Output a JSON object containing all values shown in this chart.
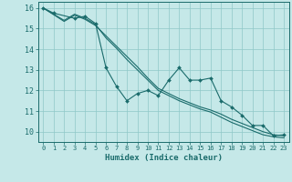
{
  "title": "",
  "xlabel": "Humidex (Indice chaleur)",
  "ylabel": "",
  "background_color": "#c5e8e8",
  "grid_color": "#8fc8c8",
  "line_color": "#1a6b6b",
  "xlim": [
    -0.5,
    23.5
  ],
  "ylim": [
    9.5,
    16.3
  ],
  "yticks": [
    10,
    11,
    12,
    13,
    14,
    15,
    16
  ],
  "xticks": [
    0,
    1,
    2,
    3,
    4,
    5,
    6,
    7,
    8,
    9,
    10,
    11,
    12,
    13,
    14,
    15,
    16,
    17,
    18,
    19,
    20,
    21,
    22,
    23
  ],
  "line1_x": [
    0,
    1,
    3,
    4,
    5,
    6,
    7,
    8,
    9,
    10,
    11,
    12,
    13,
    14,
    15,
    16,
    17,
    18,
    19,
    20,
    21,
    22,
    23
  ],
  "line1_y": [
    16.0,
    15.75,
    15.5,
    15.6,
    15.25,
    13.1,
    12.2,
    11.5,
    11.85,
    12.0,
    11.75,
    12.5,
    13.1,
    12.5,
    12.5,
    12.6,
    11.5,
    11.2,
    10.8,
    10.3,
    10.3,
    9.8,
    9.85
  ],
  "line2_x": [
    0,
    2,
    3,
    4,
    5,
    6,
    7,
    8,
    9,
    10,
    11,
    12,
    13,
    14,
    15,
    16,
    17,
    18,
    19,
    20,
    21,
    22,
    23
  ],
  "line2_y": [
    16.0,
    15.4,
    15.7,
    15.5,
    15.2,
    14.55,
    14.05,
    13.5,
    13.0,
    12.5,
    12.0,
    11.75,
    11.5,
    11.3,
    11.1,
    10.95,
    10.7,
    10.45,
    10.25,
    10.05,
    9.85,
    9.75,
    9.7
  ],
  "line3_x": [
    0,
    2,
    3,
    4,
    5,
    6,
    7,
    8,
    9,
    10,
    11,
    12,
    13,
    14,
    15,
    16,
    17,
    18,
    19,
    20,
    21,
    22,
    23
  ],
  "line3_y": [
    16.0,
    15.35,
    15.65,
    15.45,
    15.15,
    14.65,
    14.15,
    13.65,
    13.15,
    12.6,
    12.1,
    11.85,
    11.6,
    11.4,
    11.2,
    11.05,
    10.85,
    10.6,
    10.4,
    10.2,
    10.0,
    9.85,
    9.8
  ]
}
